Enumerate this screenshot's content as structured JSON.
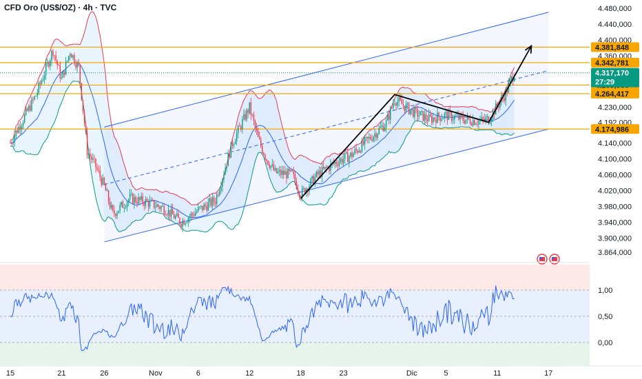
{
  "header": {
    "title": "CFD Oro (US$/OZ) · 4h · TVC"
  },
  "colors": {
    "up": "#089981",
    "down": "#f23645",
    "bb_upper": "#f23645",
    "bb_lower": "#089981",
    "bb_basis": "#2962ff",
    "channel": "#2962ff",
    "level": "#f7a600",
    "osc": "#2962ff",
    "price_tag": "#089981"
  },
  "chart_data": [
    {
      "type": "candlestick",
      "title": "CFD Oro (US$/OZ) · 4h · TVC",
      "x_tick_labels": [
        "15",
        "21",
        "26",
        "Nov",
        "6",
        "12",
        "18",
        "23",
        "Dic",
        "5",
        "11",
        "17"
      ],
      "x_tick_days": [
        0,
        6,
        11,
        17,
        22,
        28,
        34,
        39,
        47,
        51,
        57,
        63
      ],
      "y_tick_labels": [
        "4.480,000",
        "4.440,000",
        "4.400,000",
        "4.360,000",
        "4.230,000",
        "4.140,000",
        "4.100,000",
        "4.060,000",
        "4.020,000",
        "3.980,000",
        "3.940,000",
        "3.900,000",
        "3.864,000"
      ],
      "ylim": [
        3860,
        4485
      ],
      "price_levels": [
        {
          "label": "4.381,848",
          "value": 4381.848
        },
        {
          "label": "4.342,781",
          "value": 4342.781
        },
        {
          "label": "4.285,980",
          "value": 4285.98
        },
        {
          "label": "4.264,417",
          "value": 4264.417
        },
        {
          "label": "4.174,986",
          "value": 4174.986
        }
      ],
      "current_price": {
        "label": "4.317,170",
        "countdown": "27:29",
        "value": 4317.17
      },
      "hidden_tick_label": "4.192,000",
      "path_points": [
        {
          "day": 34,
          "price": 4000
        },
        {
          "day": 45,
          "price": 4262
        },
        {
          "day": 56,
          "price": 4192
        },
        {
          "day": 61,
          "price": 4385
        }
      ],
      "channel": {
        "lower": [
          {
            "day": 11,
            "price": 3890
          },
          {
            "day": 63,
            "price": 4175
          }
        ],
        "upper": [
          {
            "day": 11,
            "price": 4180
          },
          {
            "day": 63,
            "price": 4470
          }
        ]
      },
      "indicators": [
        "Bollinger Bands"
      ]
    },
    {
      "type": "line",
      "title": "",
      "y_tick_labels": [
        "1,00",
        "0,50",
        "0,00"
      ],
      "y_ticks": [
        1.0,
        0.5,
        0.0
      ],
      "ylim": [
        -0.45,
        1.5
      ],
      "bands": {
        "upper": 1.0,
        "lower": 0.0
      }
    }
  ]
}
